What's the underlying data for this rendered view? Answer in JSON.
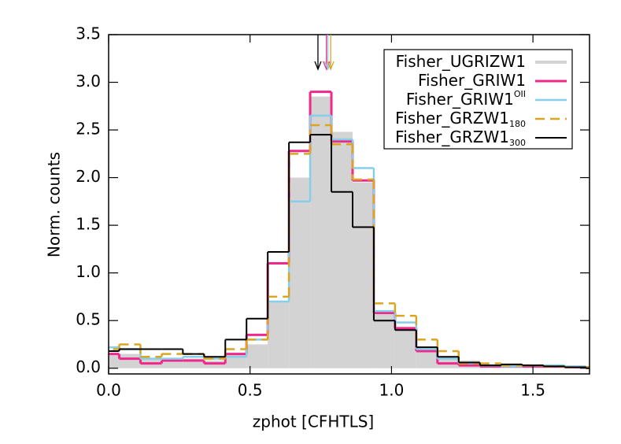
{
  "chart_data": {
    "type": "histogram",
    "xlabel": "zphot [CFHTLS]",
    "ylabel": "Norm. counts",
    "xlim": [
      0,
      1.7
    ],
    "ylim": [
      -0.06,
      3.5
    ],
    "xticks": [
      {
        "value": 0,
        "label": "0.0"
      },
      0.5,
      {
        "value": 1,
        "label": "1.0"
      },
      1.5
    ],
    "yticks": [
      {
        "value": 0,
        "label": "0.0"
      },
      0.5,
      {
        "value": 1,
        "label": "1.0"
      },
      1.5,
      {
        "value": 2,
        "label": "2.0"
      },
      2.5,
      {
        "value": 3,
        "label": "3.0"
      },
      3.5
    ],
    "bins": [
      -0.0375,
      0.0375,
      0.1125,
      0.1875,
      0.2625,
      0.3375,
      0.4125,
      0.4875,
      0.5625,
      0.6375,
      0.7125,
      0.7875,
      0.8625,
      0.9375,
      1.0125,
      1.0875,
      1.1625,
      1.2375,
      1.3125,
      1.3875,
      1.4625,
      1.5375,
      1.6125,
      1.6875,
      1.7625
    ],
    "legend": "upper right",
    "series": [
      {
        "name": "Fisher_UGRIZW1",
        "color": "#d3d3d3",
        "style": "filled",
        "values": [
          0.15,
          0.15,
          0.1,
          0.1,
          0.1,
          0.08,
          0.15,
          0.25,
          0.7,
          2.0,
          2.85,
          2.48,
          1.95,
          0.6,
          0.42,
          0.2,
          0.12,
          0.08,
          0.04,
          0.03,
          0.02,
          0.02,
          0.01,
          0.01
        ]
      },
      {
        "name": "Fisher_GRIW1",
        "color": "#f0288c",
        "style": "solid",
        "width": 3,
        "arrow_x": 0.77,
        "values": [
          0.15,
          0.1,
          0.05,
          0.08,
          0.08,
          0.05,
          0.15,
          0.35,
          1.1,
          2.28,
          2.9,
          2.38,
          1.97,
          0.58,
          0.42,
          0.18,
          0.05,
          0.03,
          0.02,
          0.02,
          0.02,
          0.02,
          0.01,
          0.01
        ]
      },
      {
        "name": "Fisher_GRIW1",
        "sup": "OII",
        "color": "#87ceeb",
        "style": "solid",
        "width": 2.5,
        "arrow_x": 0.775,
        "values": [
          0.22,
          0.2,
          0.1,
          0.1,
          0.12,
          0.1,
          0.12,
          0.3,
          0.7,
          1.75,
          2.65,
          2.4,
          2.1,
          0.6,
          0.48,
          0.2,
          0.1,
          0.05,
          0.03,
          0.02,
          0.03,
          0.03,
          0.02,
          0.01
        ]
      },
      {
        "name": "Fisher_GRZW1",
        "sub": "180",
        "color": "#daa520",
        "style": "dashed",
        "width": 2.5,
        "arrow_x": 0.785,
        "values": [
          0.2,
          0.25,
          0.12,
          0.15,
          0.15,
          0.1,
          0.2,
          0.3,
          0.75,
          2.25,
          2.55,
          2.35,
          1.98,
          0.68,
          0.55,
          0.3,
          0.18,
          0.05,
          0.05,
          0.03,
          0.03,
          0.02,
          0.01,
          0.01
        ]
      },
      {
        "name": "Fisher_GRZW1",
        "sub": "300",
        "color": "#000000",
        "style": "solid",
        "width": 2,
        "arrow_x": 0.74,
        "values": [
          0.18,
          0.2,
          0.2,
          0.2,
          0.15,
          0.12,
          0.3,
          0.52,
          1.22,
          2.37,
          2.45,
          1.85,
          1.48,
          0.5,
          0.4,
          0.22,
          0.12,
          0.06,
          0.03,
          0.04,
          0.03,
          0.02,
          0.01,
          0
        ]
      }
    ]
  }
}
